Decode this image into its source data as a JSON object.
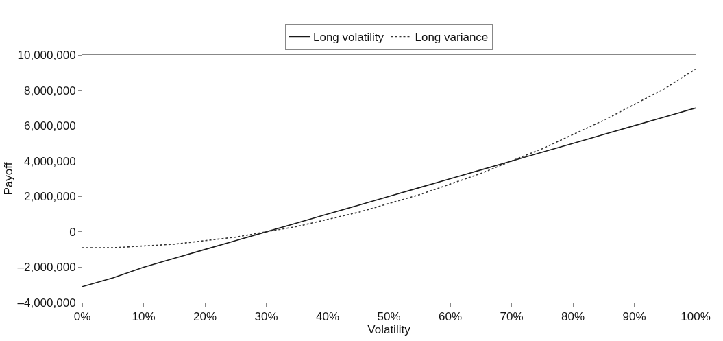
{
  "chart_data": {
    "type": "line",
    "xlabel": "Volatility",
    "ylabel": "Payoff",
    "x": [
      0,
      5,
      10,
      15,
      20,
      25,
      30,
      35,
      40,
      45,
      50,
      55,
      60,
      65,
      70,
      75,
      80,
      85,
      90,
      95,
      100
    ],
    "series": [
      {
        "name": "Long volatility",
        "color": "#1a1a1a",
        "line_style": "solid",
        "values": [
          -3100000,
          -2600000,
          -2000000,
          -1500000,
          -1000000,
          -500000,
          0,
          500000,
          1000000,
          1500000,
          2000000,
          2500000,
          3000000,
          3500000,
          4000000,
          4500000,
          5000000,
          5500000,
          6000000,
          6500000,
          7000000
        ]
      },
      {
        "name": "Long variance",
        "color": "#333333",
        "line_style": "dotted",
        "values": [
          -900000,
          -900000,
          -800000,
          -700000,
          -500000,
          -300000,
          0,
          300000,
          700000,
          1100000,
          1600000,
          2100000,
          2700000,
          3300000,
          4000000,
          4700000,
          5500000,
          6300000,
          7200000,
          8100000,
          9200000
        ]
      }
    ],
    "xlim": [
      0,
      100
    ],
    "xticks": [
      {
        "value": 0,
        "label": "0%"
      },
      {
        "value": 10,
        "label": "10%"
      },
      {
        "value": 20,
        "label": "20%"
      },
      {
        "value": 30,
        "label": "30%"
      },
      {
        "value": 40,
        "label": "40%"
      },
      {
        "value": 50,
        "label": "50%"
      },
      {
        "value": 60,
        "label": "60%"
      },
      {
        "value": 70,
        "label": "70%"
      },
      {
        "value": 80,
        "label": "80%"
      },
      {
        "value": 90,
        "label": "90%"
      },
      {
        "value": 100,
        "label": "100%"
      }
    ],
    "ylim": [
      -4000000,
      10000000
    ],
    "yticks": [
      {
        "value": -4000000,
        "label": "–4,000,000"
      },
      {
        "value": -2000000,
        "label": "–2,000,000"
      },
      0,
      {
        "value": 2000000,
        "label": "2,000,000"
      },
      {
        "value": 4000000,
        "label": "4,000,000"
      },
      {
        "value": 6000000,
        "label": "6,000,000"
      },
      {
        "value": 8000000,
        "label": "8,000,000"
      },
      {
        "value": 10000000,
        "label": "10,000,000"
      }
    ],
    "legend": "top",
    "marker": "none"
  }
}
